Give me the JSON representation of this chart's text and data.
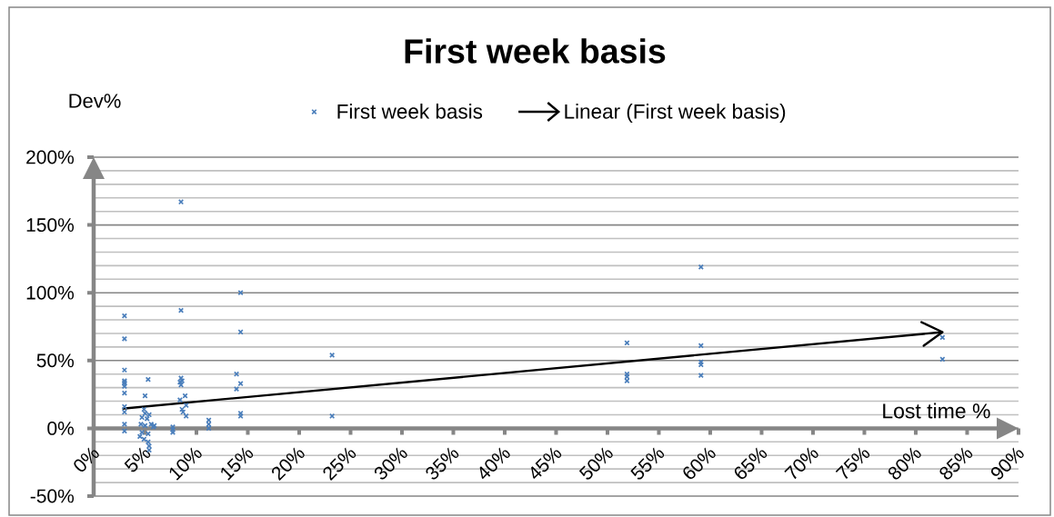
{
  "chart_data": {
    "type": "scatter",
    "title": "First week basis",
    "xlabel": "Lost time %",
    "ylabel": "Dev%",
    "xlim": [
      0,
      90
    ],
    "xticks": [
      {
        "value": 0,
        "label": "0%"
      },
      {
        "value": 5,
        "label": "5%"
      },
      {
        "value": 10,
        "label": "10%"
      },
      {
        "value": 15,
        "label": "15%"
      },
      {
        "value": 20,
        "label": "20%"
      },
      {
        "value": 25,
        "label": "25%"
      },
      {
        "value": 30,
        "label": "30%"
      },
      {
        "value": 35,
        "label": "35%"
      },
      {
        "value": 40,
        "label": "40%"
      },
      {
        "value": 45,
        "label": "45%"
      },
      {
        "value": 50,
        "label": "50%"
      },
      {
        "value": 55,
        "label": "55%"
      },
      {
        "value": 60,
        "label": "60%"
      },
      {
        "value": 65,
        "label": "65%"
      },
      {
        "value": 70,
        "label": "70%"
      },
      {
        "value": 75,
        "label": "75%"
      },
      {
        "value": 80,
        "label": "80%"
      },
      {
        "value": 85,
        "label": "85%"
      },
      {
        "value": 90,
        "label": "90%"
      }
    ],
    "ylim": [
      -50,
      200
    ],
    "yticks": [
      {
        "value": -50,
        "label": "-50%"
      },
      {
        "value": -40,
        "label": null
      },
      {
        "value": -30,
        "label": null
      },
      {
        "value": -20,
        "label": null
      },
      {
        "value": -10,
        "label": null
      },
      {
        "value": 0,
        "label": "0%"
      },
      {
        "value": 10,
        "label": null
      },
      {
        "value": 20,
        "label": null
      },
      {
        "value": 30,
        "label": null
      },
      {
        "value": 40,
        "label": null
      },
      {
        "value": 50,
        "label": "50%"
      },
      {
        "value": 60,
        "label": null
      },
      {
        "value": 70,
        "label": null
      },
      {
        "value": 80,
        "label": null
      },
      {
        "value": 90,
        "label": null
      },
      {
        "value": 100,
        "label": "100%"
      },
      {
        "value": 110,
        "label": null
      },
      {
        "value": 120,
        "label": null
      },
      {
        "value": 130,
        "label": null
      },
      {
        "value": 140,
        "label": null
      },
      {
        "value": 150,
        "label": "150%"
      },
      {
        "value": 160,
        "label": null
      },
      {
        "value": 170,
        "label": null
      },
      {
        "value": 180,
        "label": null
      },
      {
        "value": 190,
        "label": null
      },
      {
        "value": 200,
        "label": "200%"
      }
    ],
    "grid": "y",
    "legend": "top",
    "marker": "cross",
    "series": [
      {
        "name": "First week basis",
        "color": "#4a7ebb",
        "x": [
          3.0,
          3.0,
          3.0,
          3.0,
          3.0,
          3.0,
          3.0,
          3.0,
          3.0,
          3.0,
          3.0,
          3.0,
          5.0,
          5.3,
          4.9,
          5.0,
          4.7,
          5.2,
          5.4,
          4.6,
          5.0,
          5.6,
          5.8,
          5.9,
          4.7,
          5.3,
          4.5,
          4.9,
          5.3,
          5.4,
          5.4,
          7.7,
          7.7,
          7.7,
          8.5,
          8.5,
          8.5,
          8.6,
          8.4,
          8.5,
          8.9,
          8.4,
          9.0,
          8.6,
          8.7,
          9.0,
          11.2,
          11.2,
          11.2,
          13.9,
          14.3,
          13.9,
          14.3,
          14.3,
          14.3,
          14.3,
          23.2,
          23.2,
          51.9,
          51.9,
          51.9,
          51.9,
          59.1,
          59.1,
          59.1,
          59.1,
          59.1,
          82.6,
          82.6
        ],
        "values": [
          83,
          66,
          43,
          35,
          34,
          33,
          31,
          26,
          16,
          12,
          3,
          -2,
          24,
          36,
          14,
          11,
          8,
          7,
          10,
          3,
          2,
          3,
          1,
          2,
          -3,
          -4,
          -6,
          -8,
          -10,
          -13,
          -16,
          1,
          -1,
          -3,
          167,
          87,
          37,
          35,
          34,
          32,
          24,
          21,
          17,
          14,
          12,
          9,
          6,
          3,
          0,
          40,
          33,
          29,
          100,
          71,
          11,
          9,
          54,
          9,
          63,
          40,
          38,
          35,
          119,
          61,
          49,
          47,
          39,
          67,
          51
        ]
      },
      {
        "name": "Linear (First week basis)",
        "type": "line",
        "marker": "none",
        "color": "#000000",
        "x": [
          2.8,
          82.6
        ],
        "values": [
          14.5,
          71
        ]
      }
    ]
  }
}
